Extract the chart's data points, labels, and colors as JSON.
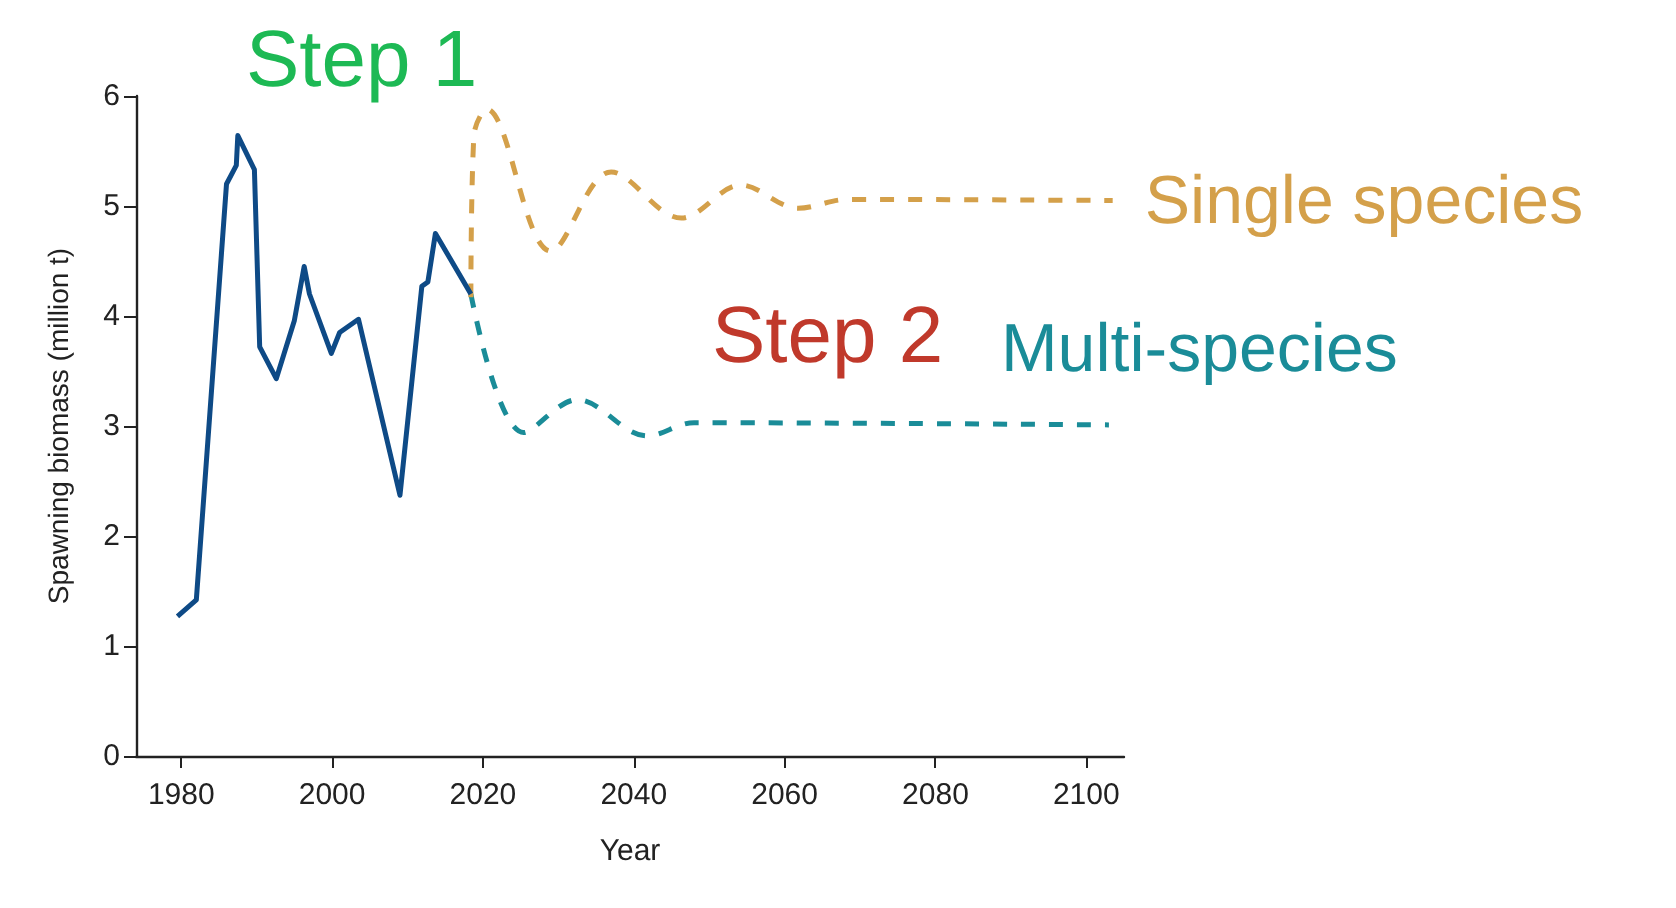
{
  "chart_data": {
    "type": "line",
    "xlabel": "Year",
    "ylabel": "Spawning biomass (million t)",
    "annotations": [
      "Step 1",
      "Step 2"
    ],
    "xlim": [
      1974,
      2105
    ],
    "xticks": [
      1980,
      2000,
      2020,
      2040,
      2060,
      2080,
      2100
    ],
    "ylim": [
      0,
      6
    ],
    "yticks": [
      0,
      1,
      2,
      3,
      4,
      5,
      6
    ],
    "grid": false,
    "legend": false,
    "marker": "none",
    "series": [
      {
        "color": "#0e4a86",
        "line_style": "solid",
        "x": [
          1979.5,
          1982,
          1986,
          1987.3,
          1987.5,
          1989.7,
          1990.4,
          1992.6,
          1995,
          1996.3,
          1997,
          1999.9,
          2001,
          2003.5,
          2009,
          2011.9,
          2012.7,
          2013.7,
          2018.4
        ],
        "values": [
          1.27,
          1.42,
          5.2,
          5.37,
          5.64,
          5.33,
          3.72,
          3.43,
          3.96,
          4.45,
          4.2,
          3.66,
          3.85,
          3.97,
          2.37,
          4.27,
          4.31,
          4.75,
          4.2
        ]
      },
      {
        "name": "Single species",
        "color": "#d4a04a",
        "line_style": "dashed",
        "x": [
          2018.4,
          2018.8,
          2020.5,
          2029,
          2037,
          2046.3,
          2054.2,
          2061.8,
          2068.3,
          2103.5
        ],
        "values": [
          4.17,
          5.64,
          5.88,
          4.59,
          5.31,
          4.89,
          5.19,
          4.98,
          5.06,
          5.05
        ]
      },
      {
        "name": "Multi-species",
        "color": "#1a8c98",
        "line_style": "dashed",
        "x": [
          2018.4,
          2025.4,
          2032.5,
          2041.8,
          2048,
          2103
        ],
        "values": [
          4.2,
          2.94,
          3.24,
          2.91,
          3.03,
          3.01
        ]
      }
    ]
  }
}
